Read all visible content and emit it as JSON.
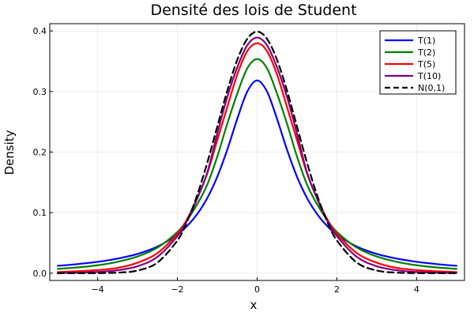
{
  "chart_data": {
    "type": "line",
    "title": "Densité des lois de Student",
    "xlabel": "x",
    "ylabel": "Density",
    "xlim": [
      -5.2,
      5.2
    ],
    "ylim": [
      -0.012,
      0.412
    ],
    "x_ticks": [
      -4,
      -2,
      0,
      2,
      4
    ],
    "x_tick_labels": [
      "−4",
      "−2",
      "0",
      "2",
      "4"
    ],
    "y_ticks": [
      0.0,
      0.1,
      0.2,
      0.3,
      0.4
    ],
    "y_tick_labels": [
      "0.0",
      "0.1",
      "0.2",
      "0.3",
      "0.4"
    ],
    "grid": true,
    "legend_position": "top-right",
    "x": [
      -5.0,
      -4.5,
      -4.0,
      -3.5,
      -3.0,
      -2.5,
      -2.0,
      -1.75,
      -1.5,
      -1.25,
      -1.0,
      -0.75,
      -0.5,
      -0.25,
      0.0,
      0.25,
      0.5,
      0.75,
      1.0,
      1.25,
      1.5,
      1.75,
      2.0,
      2.5,
      3.0,
      3.5,
      4.0,
      4.5,
      5.0
    ],
    "series": [
      {
        "name": "T(1)",
        "color": "#0000ff",
        "dash": "solid",
        "values": [
          0.0122,
          0.015,
          0.0187,
          0.0241,
          0.0318,
          0.0439,
          0.0637,
          0.0784,
          0.0979,
          0.1242,
          0.1592,
          0.2037,
          0.2546,
          0.2996,
          0.3183,
          0.2996,
          0.2546,
          0.2037,
          0.1592,
          0.1242,
          0.0979,
          0.0784,
          0.0637,
          0.0439,
          0.0318,
          0.0241,
          0.0187,
          0.015,
          0.0122
        ]
      },
      {
        "name": "T(2)",
        "color": "#008000",
        "dash": "solid",
        "values": [
          0.0071,
          0.0095,
          0.0131,
          0.0188,
          0.0275,
          0.0422,
          0.068,
          0.0883,
          0.1141,
          0.1464,
          0.1925,
          0.2467,
          0.2962,
          0.3381,
          0.3536,
          0.3381,
          0.2962,
          0.2467,
          0.1925,
          0.1464,
          0.1141,
          0.0883,
          0.068,
          0.0422,
          0.0275,
          0.0188,
          0.0131,
          0.0095,
          0.0071
        ]
      },
      {
        "name": "T(5)",
        "color": "#ff0000",
        "dash": "solid",
        "values": [
          0.0018,
          0.0032,
          0.0051,
          0.0087,
          0.0173,
          0.0332,
          0.0651,
          0.09,
          0.1245,
          0.165,
          0.2197,
          0.2741,
          0.3279,
          0.3665,
          0.3796,
          0.3665,
          0.3279,
          0.2741,
          0.2197,
          0.165,
          0.1245,
          0.09,
          0.0651,
          0.0332,
          0.0173,
          0.0087,
          0.0051,
          0.0032,
          0.0018
        ]
      },
      {
        "name": "T(10)",
        "color": "#800080",
        "dash": "solid",
        "values": [
          0.0004,
          0.0009,
          0.002,
          0.0048,
          0.0114,
          0.0269,
          0.0611,
          0.0876,
          0.1234,
          0.1663,
          0.2304,
          0.2908,
          0.3397,
          0.3761,
          0.3891,
          0.3761,
          0.3397,
          0.2908,
          0.2304,
          0.1663,
          0.1234,
          0.0876,
          0.0611,
          0.0269,
          0.0114,
          0.0048,
          0.002,
          0.0009,
          0.0004
        ]
      },
      {
        "name": "N(0,1)",
        "color": "#000000",
        "dash": "dashed",
        "values": [
          0.0,
          0.0,
          0.0001,
          0.0009,
          0.0044,
          0.0175,
          0.054,
          0.0863,
          0.1295,
          0.1826,
          0.242,
          0.3011,
          0.3521,
          0.3867,
          0.3989,
          0.3867,
          0.3521,
          0.3011,
          0.242,
          0.1826,
          0.1295,
          0.0863,
          0.054,
          0.0175,
          0.0044,
          0.0009,
          0.0001,
          0.0,
          0.0
        ]
      }
    ]
  }
}
